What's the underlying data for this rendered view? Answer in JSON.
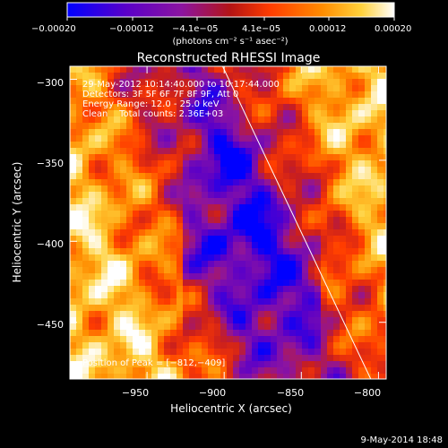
{
  "chart_data": {
    "type": "heatmap",
    "title": "Reconstructed RHESSI Image",
    "xlabel": "Heliocentric X (arcsec)",
    "ylabel": "Heliocentric Y (arcsec)",
    "xlim": [
      -1000,
      -795
    ],
    "ylim": [
      -485,
      -292
    ],
    "x_ticks": [
      -950,
      -900,
      -850,
      -800
    ],
    "x_tick_labels": [
      "−950",
      "−900",
      "−850",
      "−800"
    ],
    "y_ticks": [
      -300,
      -350,
      -400,
      -450
    ],
    "y_tick_labels": [
      "−300",
      "−350",
      "−400",
      "−450"
    ],
    "colorbar": {
      "range": [
        -0.0002,
        0.0002
      ],
      "tick_values": [
        -0.0002,
        -0.00012,
        -4.1e-05,
        4.1e-05,
        0.00012,
        0.0002
      ],
      "tick_labels": [
        "−0.00020",
        "−0.00012",
        "−4.1e−05",
        "4.1e−05",
        "0.00012",
        "0.00020"
      ],
      "units_label": "(photons cm⁻² s⁻¹ asec⁻²)",
      "colors": [
        "#0000ff",
        "#5a00c8",
        "#8c14a0",
        "#c81e1e",
        "#ff3c00",
        "#ff8c00",
        "#ffd23c",
        "#ffffff"
      ]
    },
    "annotations": [
      "29-May-2012 10:14:40.000 to 10:17:44.000",
      "Detectors: 3F 5F 6F 7F 8F 9F, Att 0",
      "Energy Range: 12.0 - 25.0 keV",
      "Clean    Total counts: 2.36E+03"
    ],
    "peak_label": "Position of Peak = [−812,−409]",
    "limb_line": {
      "x": [
        -901,
        -805
      ],
      "y": [
        -292,
        -485
      ]
    },
    "timestamp": "9-May-2014 18:48"
  }
}
